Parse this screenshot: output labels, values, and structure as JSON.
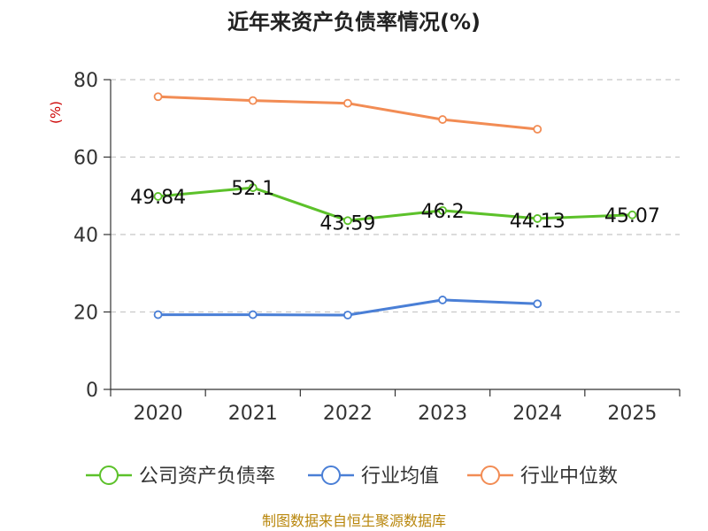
{
  "title": "近年来资产负债率情况(%)",
  "y_unit": "(%)",
  "source": "制图数据来自恒生聚源数据库",
  "chart_data": {
    "type": "line",
    "title": "近年来资产负债率情况(%)",
    "xlabel": "",
    "ylabel": "(%)",
    "categories": [
      "2020",
      "2021",
      "2022",
      "2023",
      "2024",
      "2025"
    ],
    "ylim": [
      0,
      80
    ],
    "yticks": [
      0,
      20,
      40,
      60,
      80
    ],
    "grid": true,
    "legend_position": "bottom",
    "series": [
      {
        "name": "公司资产负债率",
        "color": "#5cc12a",
        "values": [
          49.84,
          52.1,
          43.59,
          46.2,
          44.13,
          45.07
        ],
        "labels": [
          "49.84",
          "52.1",
          "43.59",
          "46.2",
          "44.13",
          "45.07"
        ]
      },
      {
        "name": "行业均值",
        "color": "#4a7fd6",
        "values": [
          19.3,
          19.3,
          19.2,
          23.1,
          22.1,
          null
        ]
      },
      {
        "name": "行业中位数",
        "color": "#f28c54",
        "values": [
          75.6,
          74.6,
          73.9,
          69.7,
          67.2,
          null
        ]
      }
    ]
  }
}
